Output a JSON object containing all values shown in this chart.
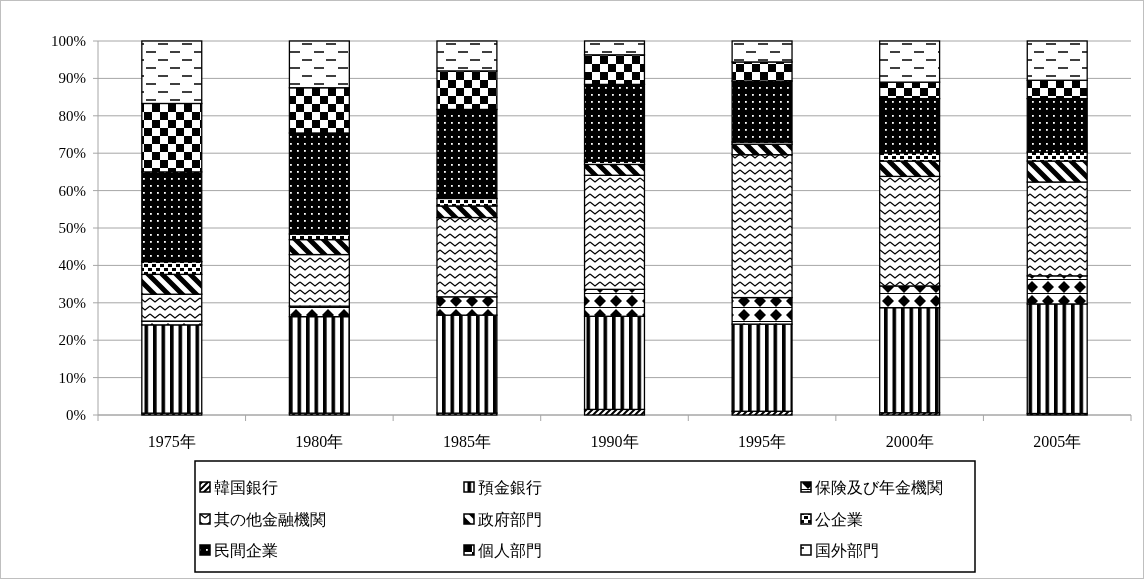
{
  "chart_data": {
    "type": "bar",
    "stacked": true,
    "categories": [
      "1975年",
      "1980年",
      "1985年",
      "1990年",
      "1995年",
      "2000年",
      "2005年"
    ],
    "series": [
      {
        "name": "韓国銀行",
        "color": "#000000",
        "values": [
          0.5,
          0.5,
          0.5,
          1.5,
          1.0,
          0.6,
          0.4
        ]
      },
      {
        "name": "預金銀行",
        "color": "#000000",
        "values": [
          23.6,
          25.8,
          26.2,
          24.9,
          23.3,
          28.1,
          29.3
        ]
      },
      {
        "name": "保険及び年金機関",
        "color": "#000000",
        "values": [
          1.0,
          2.8,
          4.9,
          7.2,
          7.1,
          5.8,
          7.5
        ]
      },
      {
        "name": "其の他金融機関",
        "color": "#000000",
        "values": [
          7.2,
          13.8,
          21.2,
          30.5,
          38.2,
          29.3,
          25.1
        ]
      },
      {
        "name": "政府部門",
        "color": "#000000",
        "values": [
          5.3,
          4.0,
          3.1,
          2.9,
          2.8,
          4.1,
          5.6
        ]
      },
      {
        "name": "公企業",
        "color": "#000000",
        "values": [
          3.4,
          1.5,
          2.0,
          0.9,
          0.6,
          2.2,
          2.4
        ]
      },
      {
        "name": "民間企業",
        "color": "#000000",
        "values": [
          24.0,
          27.0,
          23.8,
          20.5,
          16.3,
          14.5,
          14.3
        ]
      },
      {
        "name": "個人部門",
        "color": "#000000",
        "values": [
          18.3,
          12.1,
          10.3,
          7.9,
          5.1,
          4.4,
          4.9
        ]
      },
      {
        "name": "国外部門",
        "color": "#000000",
        "values": [
          16.7,
          12.5,
          8.0,
          3.7,
          5.6,
          11.0,
          10.5
        ]
      }
    ],
    "ylim": [
      0,
      100
    ],
    "yticks": [
      {
        "value": 0,
        "label": "0%"
      },
      {
        "value": 10,
        "label": "10%"
      },
      {
        "value": 20,
        "label": "20%"
      },
      {
        "value": 30,
        "label": "30%"
      },
      {
        "value": 40,
        "label": "40%"
      },
      {
        "value": 50,
        "label": "50%"
      },
      {
        "value": 60,
        "label": "60%"
      },
      {
        "value": 70,
        "label": "70%"
      },
      {
        "value": 80,
        "label": "80%"
      },
      {
        "value": 90,
        "label": "90%"
      },
      {
        "value": 100,
        "label": "100%"
      }
    ],
    "grid": "y",
    "legend": "bottom"
  }
}
